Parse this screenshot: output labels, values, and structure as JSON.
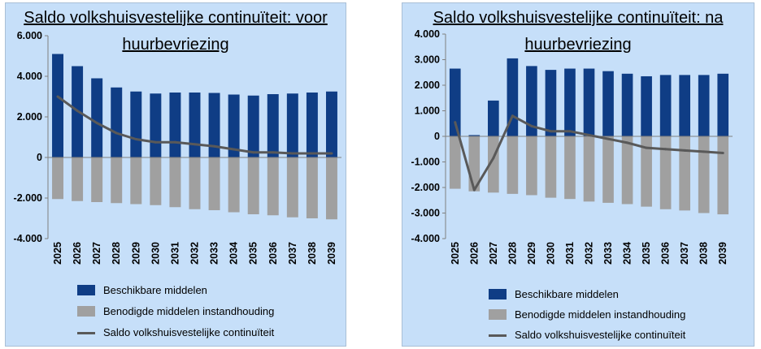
{
  "charts": [
    {
      "id": "left",
      "title_line1": "Saldo volkshuisvestelijke continuïteit: voor",
      "title_line2": "huurbevriezing",
      "legend": [
        {
          "label": "Beschikbare middelen"
        },
        {
          "label": "Benodigde middelen instandhouding"
        },
        {
          "label": "Saldo volkshuisvestelijke continuïteit"
        }
      ]
    },
    {
      "id": "right",
      "title_line1": "Saldo volkshuisvestelijke continuïteit: na",
      "title_line2": "huurbevriezing",
      "legend": [
        {
          "label": "Beschikbare middelen"
        },
        {
          "label": "Benodigde middelen instandhouding"
        },
        {
          "label": "Saldo volkshuisvestelijke continuïteit"
        }
      ]
    }
  ],
  "chart_data": [
    {
      "type": "bar",
      "title": "Saldo volkshuisvestelijke continuïteit: voor huurbevriezing",
      "categories": [
        "2025",
        "2026",
        "2027",
        "2028",
        "2029",
        "2030",
        "2031",
        "2032",
        "2033",
        "2034",
        "2035",
        "2036",
        "2037",
        "2038",
        "2039"
      ],
      "series": [
        {
          "name": "Beschikbare middelen",
          "kind": "bar",
          "color": "#0f3d85",
          "values": [
            5100,
            4500,
            3900,
            3450,
            3250,
            3150,
            3200,
            3200,
            3180,
            3100,
            3050,
            3120,
            3150,
            3200,
            3250
          ]
        },
        {
          "name": "Benodigde middelen instandhouding",
          "kind": "bar",
          "color": "#a0a0a0",
          "values": [
            -2050,
            -2150,
            -2200,
            -2250,
            -2300,
            -2350,
            -2450,
            -2550,
            -2600,
            -2700,
            -2800,
            -2850,
            -2950,
            -3000,
            -3050
          ]
        },
        {
          "name": "Saldo volkshuisvestelijke continuïteit",
          "kind": "line",
          "color": "#595959",
          "values": [
            3000,
            2300,
            1700,
            1200,
            900,
            750,
            750,
            650,
            550,
            400,
            250,
            250,
            200,
            200,
            200
          ]
        }
      ],
      "yticks": [
        "6.000",
        "4.000",
        "2.000",
        "0",
        "-2.000",
        "-4.000"
      ],
      "ylim": [
        -4000,
        6000
      ],
      "grid": false,
      "legend_position": "bottom"
    },
    {
      "type": "bar",
      "title": "Saldo volkshuisvestelijke continuïteit: na huurbevriezing",
      "categories": [
        "2025",
        "2026",
        "2027",
        "2028",
        "2029",
        "2030",
        "2031",
        "2032",
        "2033",
        "2034",
        "2035",
        "2036",
        "2037",
        "2038",
        "2039"
      ],
      "series": [
        {
          "name": "Beschikbare middelen",
          "kind": "bar",
          "color": "#0f3d85",
          "values": [
            2650,
            50,
            1400,
            3050,
            2750,
            2600,
            2650,
            2650,
            2550,
            2450,
            2350,
            2400,
            2400,
            2400,
            2450
          ]
        },
        {
          "name": "Benodigde middelen instandhouding",
          "kind": "bar",
          "color": "#a0a0a0",
          "values": [
            -2050,
            -2150,
            -2200,
            -2250,
            -2300,
            -2400,
            -2450,
            -2550,
            -2600,
            -2650,
            -2750,
            -2850,
            -2900,
            -3000,
            -3050
          ]
        },
        {
          "name": "Saldo volkshuisvestelijke continuïteit",
          "kind": "line",
          "color": "#595959",
          "values": [
            550,
            -2100,
            -850,
            800,
            400,
            200,
            200,
            50,
            -100,
            -250,
            -450,
            -500,
            -550,
            -600,
            -650
          ]
        }
      ],
      "yticks": [
        "4.000",
        "3.000",
        "2.000",
        "1.000",
        "0",
        "-1.000",
        "-2.000",
        "-3.000",
        "-4.000"
      ],
      "ylim": [
        -4000,
        4000
      ],
      "grid": false,
      "legend_position": "bottom"
    }
  ]
}
